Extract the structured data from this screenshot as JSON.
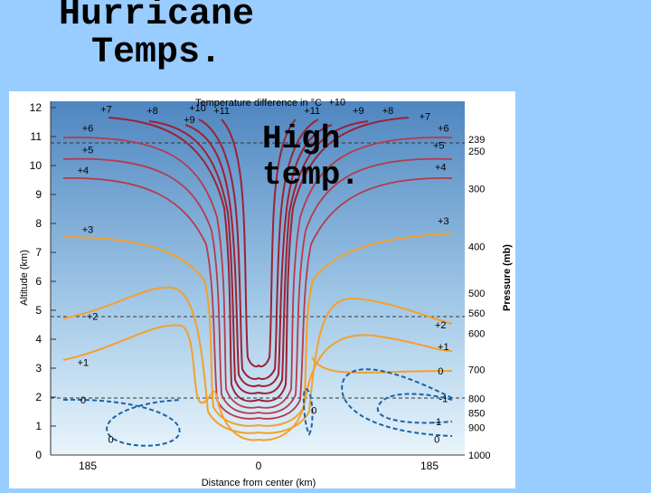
{
  "slide": {
    "title_line1": "Hurricane",
    "title_line2": "Temps.",
    "callout_line1": "High",
    "callout_line2": "temp."
  },
  "figure": {
    "title": "Temperature difference in °C",
    "xlabel": "Distance from center (km)",
    "ylabel": "Altitude (km)",
    "y2label": "Pressure (mb)",
    "x_ticks": [
      "185",
      "0",
      "185"
    ],
    "altitude_ticks": [
      "0",
      "1",
      "2",
      "3",
      "4",
      "5",
      "6",
      "7",
      "8",
      "9",
      "10",
      "11",
      "12"
    ],
    "pressure_ticks": [
      {
        "label": "1000",
        "alt": 0
      },
      {
        "label": "900",
        "alt": 0.95
      },
      {
        "label": "850",
        "alt": 1.45
      },
      {
        "label": "800",
        "alt": 1.95
      },
      {
        "label": "700",
        "alt": 2.95
      },
      {
        "label": "600",
        "alt": 4.2
      },
      {
        "label": "560",
        "alt": 4.9
      },
      {
        "label": "500",
        "alt": 5.6
      },
      {
        "label": "400",
        "alt": 7.2
      },
      {
        "label": "300",
        "alt": 9.2
      },
      {
        "label": "250",
        "alt": 10.5
      },
      {
        "label": "239",
        "alt": 10.9
      }
    ],
    "reference_levels_km": [
      11,
      5,
      2
    ],
    "contour_labels": [
      {
        "text": "+7",
        "x": -165,
        "alt": 11.95
      },
      {
        "text": "+8",
        "x": -115,
        "alt": 11.9
      },
      {
        "text": "+9",
        "x": -75,
        "alt": 11.6
      },
      {
        "text": "+10",
        "x": -66,
        "alt": 12.0
      },
      {
        "text": "+11",
        "x": -40,
        "alt": 11.9
      },
      {
        "text": "+11",
        "x": 58,
        "alt": 11.9
      },
      {
        "text": "+10",
        "x": 85,
        "alt": 12.2
      },
      {
        "text": "+9",
        "x": 108,
        "alt": 11.9
      },
      {
        "text": "+8",
        "x": 140,
        "alt": 11.9
      },
      {
        "text": "+7",
        "x": 180,
        "alt": 11.7
      },
      {
        "text": "+6",
        "x": -185,
        "alt": 11.3
      },
      {
        "text": "+5",
        "x": -185,
        "alt": 10.55
      },
      {
        "text": "+4",
        "x": -190,
        "alt": 9.85
      },
      {
        "text": "+6",
        "x": 200,
        "alt": 11.3
      },
      {
        "text": "+5",
        "x": 195,
        "alt": 10.7
      },
      {
        "text": "+4",
        "x": 197,
        "alt": 9.95
      },
      {
        "text": "+3",
        "x": -185,
        "alt": 7.8
      },
      {
        "text": "+3",
        "x": 200,
        "alt": 8.1
      },
      {
        "text": "+2",
        "x": -180,
        "alt": 4.8
      },
      {
        "text": "+2",
        "x": 197,
        "alt": 4.5
      },
      {
        "text": "+1",
        "x": -190,
        "alt": 3.2
      },
      {
        "text": "+1",
        "x": 200,
        "alt": 3.75
      },
      {
        "text": "0",
        "x": -190,
        "alt": 1.9
      },
      {
        "text": "0",
        "x": 197,
        "alt": 2.9
      },
      {
        "text": "-1",
        "x": 200,
        "alt": 1.95
      },
      {
        "text": "-1",
        "x": 193,
        "alt": 1.15
      },
      {
        "text": "0",
        "x": 193,
        "alt": 0.55
      },
      {
        "text": "0",
        "x": -160,
        "alt": 0.55
      },
      {
        "text": "0",
        "x": 60,
        "alt": 1.55
      }
    ],
    "colors": {
      "warm": "#9c2235",
      "mid": "#c94a55",
      "orange": "#f2a12e",
      "cool": "#1a63a8",
      "grid": "#333333"
    }
  }
}
